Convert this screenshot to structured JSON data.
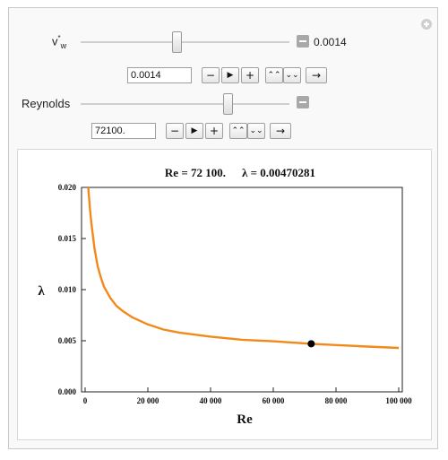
{
  "controls": {
    "vw": {
      "label_main": "v",
      "label_sup": "*",
      "label_sub": "w",
      "value": "0.0014",
      "input_value": "0.0014"
    },
    "reynolds": {
      "label": "Reynolds",
      "input_value": "72100."
    }
  },
  "buttons": {
    "minus": "−",
    "play": "▶",
    "plus": "+",
    "faster": "⌃⌃",
    "slower": "⌄⌄",
    "direction": "→"
  },
  "icons": [
    "add-icon",
    "minus-box-icon"
  ],
  "colors": {
    "curve": "#f28a1a",
    "point": "#000000"
  },
  "chart_data": {
    "type": "line",
    "title_re": "Re = 72 100.",
    "title_lambda": "λ = 0.00470281",
    "xlabel": "Re",
    "ylabel": "λ",
    "xlim": [
      0,
      100000
    ],
    "ylim": [
      0,
      0.02
    ],
    "x_ticks": [
      "0",
      "20 000",
      "40 000",
      "60 000",
      "80 000",
      "100 000"
    ],
    "y_ticks": [
      "0.000",
      "0.005",
      "0.010",
      "0.015",
      "0.020"
    ],
    "series": [
      {
        "x": [
          1000,
          1500,
          2000,
          3000,
          4000,
          5000,
          6000,
          8000,
          10000,
          12000,
          15000,
          20000,
          25000,
          30000,
          40000,
          50000,
          60000,
          72100,
          80000,
          90000,
          100000
        ],
        "y": [
          0.02,
          0.018,
          0.0165,
          0.014,
          0.0123,
          0.0112,
          0.0103,
          0.0092,
          0.0084,
          0.0079,
          0.0073,
          0.0066,
          0.0061,
          0.0058,
          0.0054,
          0.0051,
          0.00495,
          0.00470281,
          0.00458,
          0.00443,
          0.0043
        ]
      }
    ],
    "highlight": {
      "x": 72100,
      "y": 0.00470281
    }
  }
}
